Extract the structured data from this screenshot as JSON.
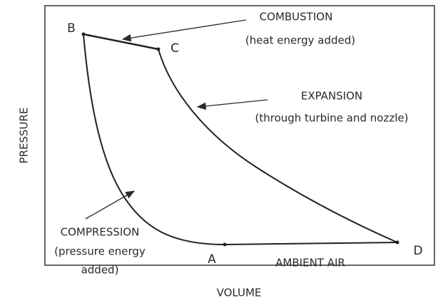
{
  "axes": {
    "y_label": "PRESSURE",
    "x_label": "VOLUME"
  },
  "points": [
    "A",
    "B",
    "C",
    "D"
  ],
  "annotations": {
    "combustion": [
      "COMBUSTION",
      "(heat energy added)"
    ],
    "expansion": [
      "EXPANSION",
      "(through turbine and nozzle)"
    ],
    "compression": [
      "COMPRESSION",
      "(pressure energy",
      "added)"
    ],
    "ambient": "AMBIENT AIR"
  }
}
